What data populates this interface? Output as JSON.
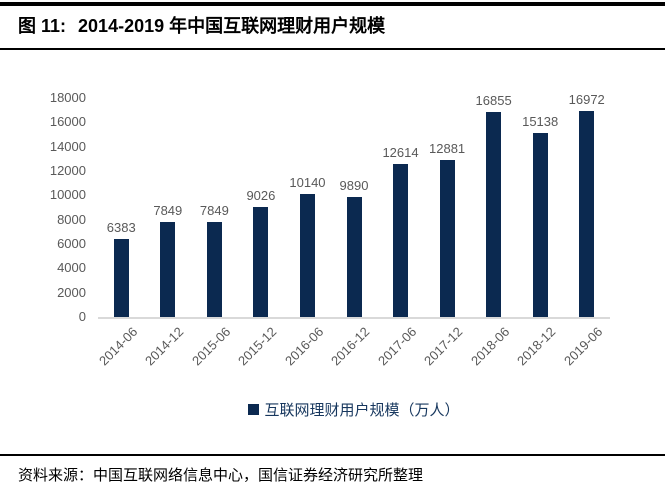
{
  "header": {
    "figure_label": "图 11:",
    "title": "2014-2019 年中国互联网理财用户规模"
  },
  "chart_data": {
    "type": "bar",
    "title": "2014-2019 年中国互联网理财用户规模",
    "categories": [
      "2014-06",
      "2014-12",
      "2015-06",
      "2015-12",
      "2016-06",
      "2016-12",
      "2017-06",
      "2017-12",
      "2018-06",
      "2018-12",
      "2019-06"
    ],
    "values": [
      6383,
      7849,
      7849,
      9026,
      10140,
      9890,
      12614,
      12881,
      16855,
      15138,
      16972
    ],
    "series_name": "互联网理财用户规模（万人）",
    "xlabel": "",
    "ylabel": "",
    "ylim": [
      0,
      18000
    ],
    "ytick_step": 2000,
    "grid": false,
    "legend_position": "bottom",
    "colors": {
      "bar": "#0b2950",
      "axis_line": "#d9d9d9",
      "tick_label": "#595959",
      "legend_text": "#17375e"
    }
  },
  "footer": {
    "source": "资料来源：中国互联网络信息中心，国信证券经济研究所整理"
  }
}
